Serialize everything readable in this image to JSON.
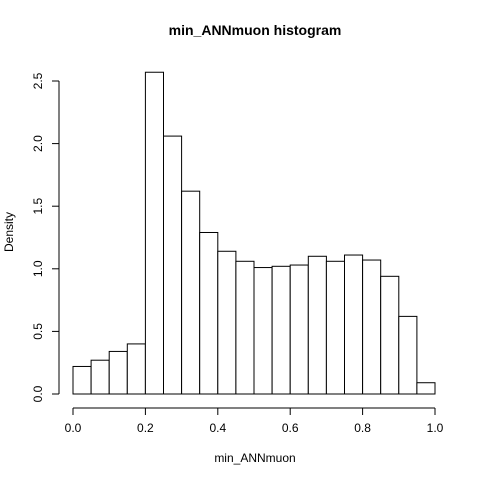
{
  "chart_data": {
    "type": "bar",
    "title": "min_ANNmuon  histogram",
    "xlabel": "min_ANNmuon",
    "ylabel": "Density",
    "xlim": [
      0.0,
      1.0
    ],
    "ylim": [
      0.0,
      2.5
    ],
    "xticks": [
      "0.0",
      "0.2",
      "0.4",
      "0.6",
      "0.8",
      "1.0"
    ],
    "yticks": [
      "0.0",
      "0.5",
      "1.0",
      "1.5",
      "2.0",
      "2.5"
    ],
    "bin_width": 0.05,
    "bins": [
      {
        "start": 0.0,
        "end": 0.05,
        "density": 0.22
      },
      {
        "start": 0.05,
        "end": 0.1,
        "density": 0.27
      },
      {
        "start": 0.1,
        "end": 0.15,
        "density": 0.34
      },
      {
        "start": 0.15,
        "end": 0.2,
        "density": 0.4
      },
      {
        "start": 0.2,
        "end": 0.25,
        "density": 2.57
      },
      {
        "start": 0.25,
        "end": 0.3,
        "density": 2.06
      },
      {
        "start": 0.3,
        "end": 0.35,
        "density": 1.62
      },
      {
        "start": 0.35,
        "end": 0.4,
        "density": 1.29
      },
      {
        "start": 0.4,
        "end": 0.45,
        "density": 1.14
      },
      {
        "start": 0.45,
        "end": 0.5,
        "density": 1.06
      },
      {
        "start": 0.5,
        "end": 0.55,
        "density": 1.01
      },
      {
        "start": 0.55,
        "end": 0.6,
        "density": 1.02
      },
      {
        "start": 0.6,
        "end": 0.65,
        "density": 1.03
      },
      {
        "start": 0.65,
        "end": 0.7,
        "density": 1.1
      },
      {
        "start": 0.7,
        "end": 0.75,
        "density": 1.06
      },
      {
        "start": 0.75,
        "end": 0.8,
        "density": 1.11
      },
      {
        "start": 0.8,
        "end": 0.85,
        "density": 1.07
      },
      {
        "start": 0.85,
        "end": 0.9,
        "density": 0.94
      },
      {
        "start": 0.9,
        "end": 0.95,
        "density": 0.62
      },
      {
        "start": 0.95,
        "end": 1.0,
        "density": 0.09
      }
    ],
    "grid": false
  }
}
